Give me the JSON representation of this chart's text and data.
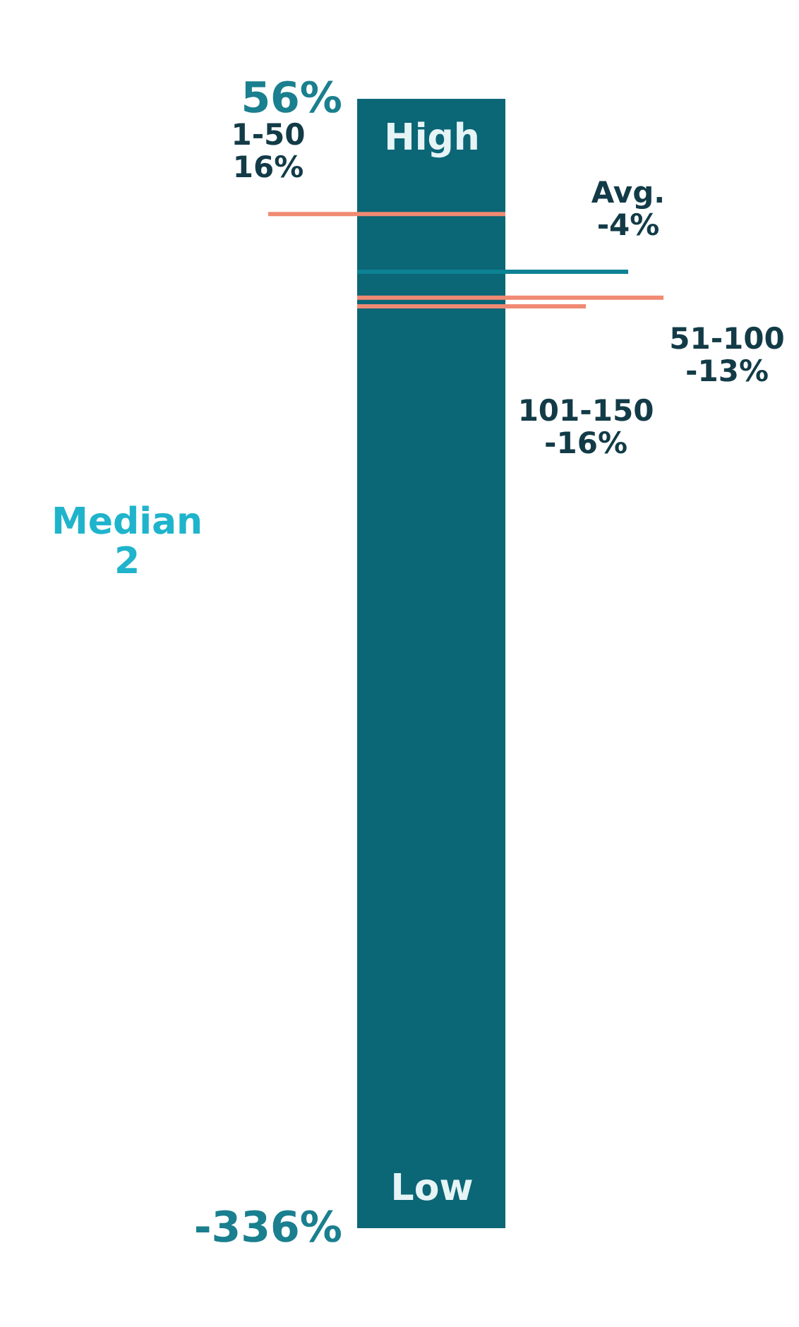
{
  "chart_data": {
    "type": "bar",
    "categories": [
      null
    ],
    "base": [
      -336
    ],
    "values": [
      392
    ],
    "color": "#0b6676",
    "ylim": [
      -336,
      56
    ],
    "yticks": [
      {
        "value": 56,
        "label": "56%"
      },
      {
        "value": -336,
        "label": "-336%"
      }
    ],
    "ref_lines": [
      {
        "axis": "y",
        "value": 16,
        "label": "1-50\n16%",
        "color": "#f08a73"
      },
      {
        "axis": "y",
        "value": -4,
        "label": "Avg.\n-4%",
        "color": "#0d8294"
      },
      {
        "axis": "y",
        "value": -13,
        "label": "51-100\n-13%",
        "color": "#f08a73"
      },
      {
        "axis": "y",
        "value": -16,
        "label": "101-150\n-16%",
        "color": "#f08a73"
      }
    ],
    "annotations": [
      "High",
      "Low",
      "Median\n2"
    ]
  }
}
